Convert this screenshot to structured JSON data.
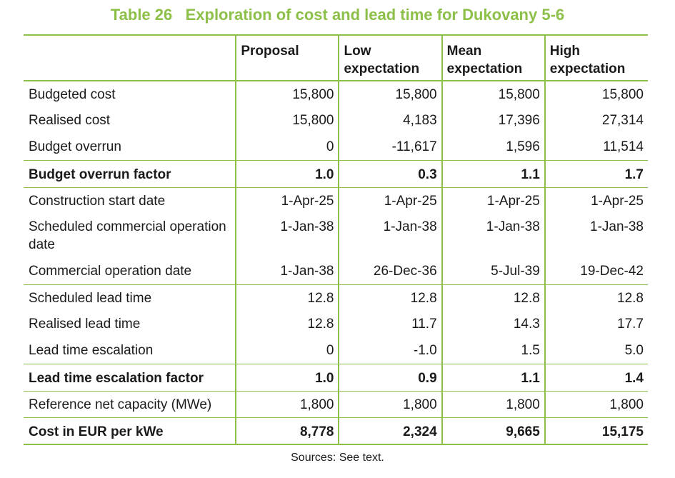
{
  "title": "Table 26   Exploration of cost and lead time for Dukovany 5-6",
  "headers": [
    "",
    "Proposal",
    "Low expectation",
    "Mean expectation",
    "High expectation"
  ],
  "rows": [
    {
      "label": "Budgeted cost",
      "values": [
        "15,800",
        "15,800",
        "15,800",
        "15,800"
      ]
    },
    {
      "label": "Realised cost",
      "values": [
        "15,800",
        "4,183",
        "17,396",
        "27,314"
      ]
    },
    {
      "label": "Budget overrun",
      "values": [
        "0",
        "-11,617",
        "1,596",
        "11,514"
      ]
    },
    {
      "label": "Budget overrun factor",
      "values": [
        "1.0",
        "0.3",
        "1.1",
        "1.7"
      ]
    },
    {
      "label": "Construction start date",
      "values": [
        "1-Apr-25",
        "1-Apr-25",
        "1-Apr-25",
        "1-Apr-25"
      ]
    },
    {
      "label": "Scheduled commercial operation date",
      "values": [
        "1-Jan-38",
        "1-Jan-38",
        "1-Jan-38",
        "1-Jan-38"
      ]
    },
    {
      "label": "Commercial operation date",
      "values": [
        "1-Jan-38",
        "26-Dec-36",
        "5-Jul-39",
        "19-Dec-42"
      ]
    },
    {
      "label": "Scheduled lead time",
      "values": [
        "12.8",
        "12.8",
        "12.8",
        "12.8"
      ]
    },
    {
      "label": "Realised lead time",
      "values": [
        "12.8",
        "11.7",
        "14.3",
        "17.7"
      ]
    },
    {
      "label": "Lead time escalation",
      "values": [
        "0",
        "-1.0",
        "1.5",
        "5.0"
      ]
    },
    {
      "label": "Lead time escalation factor",
      "values": [
        "1.0",
        "0.9",
        "1.1",
        "1.4"
      ]
    },
    {
      "label": "Reference net capacity (MWe)",
      "values": [
        "1,800",
        "1,800",
        "1,800",
        "1,800"
      ]
    },
    {
      "label": "Cost in EUR per kWe",
      "values": [
        "8,778",
        "2,324",
        "9,665",
        "15,175"
      ]
    }
  ],
  "source": "Sources: See text.",
  "colors": {
    "accent": "#8dc048",
    "text": "#1a1a1a"
  }
}
